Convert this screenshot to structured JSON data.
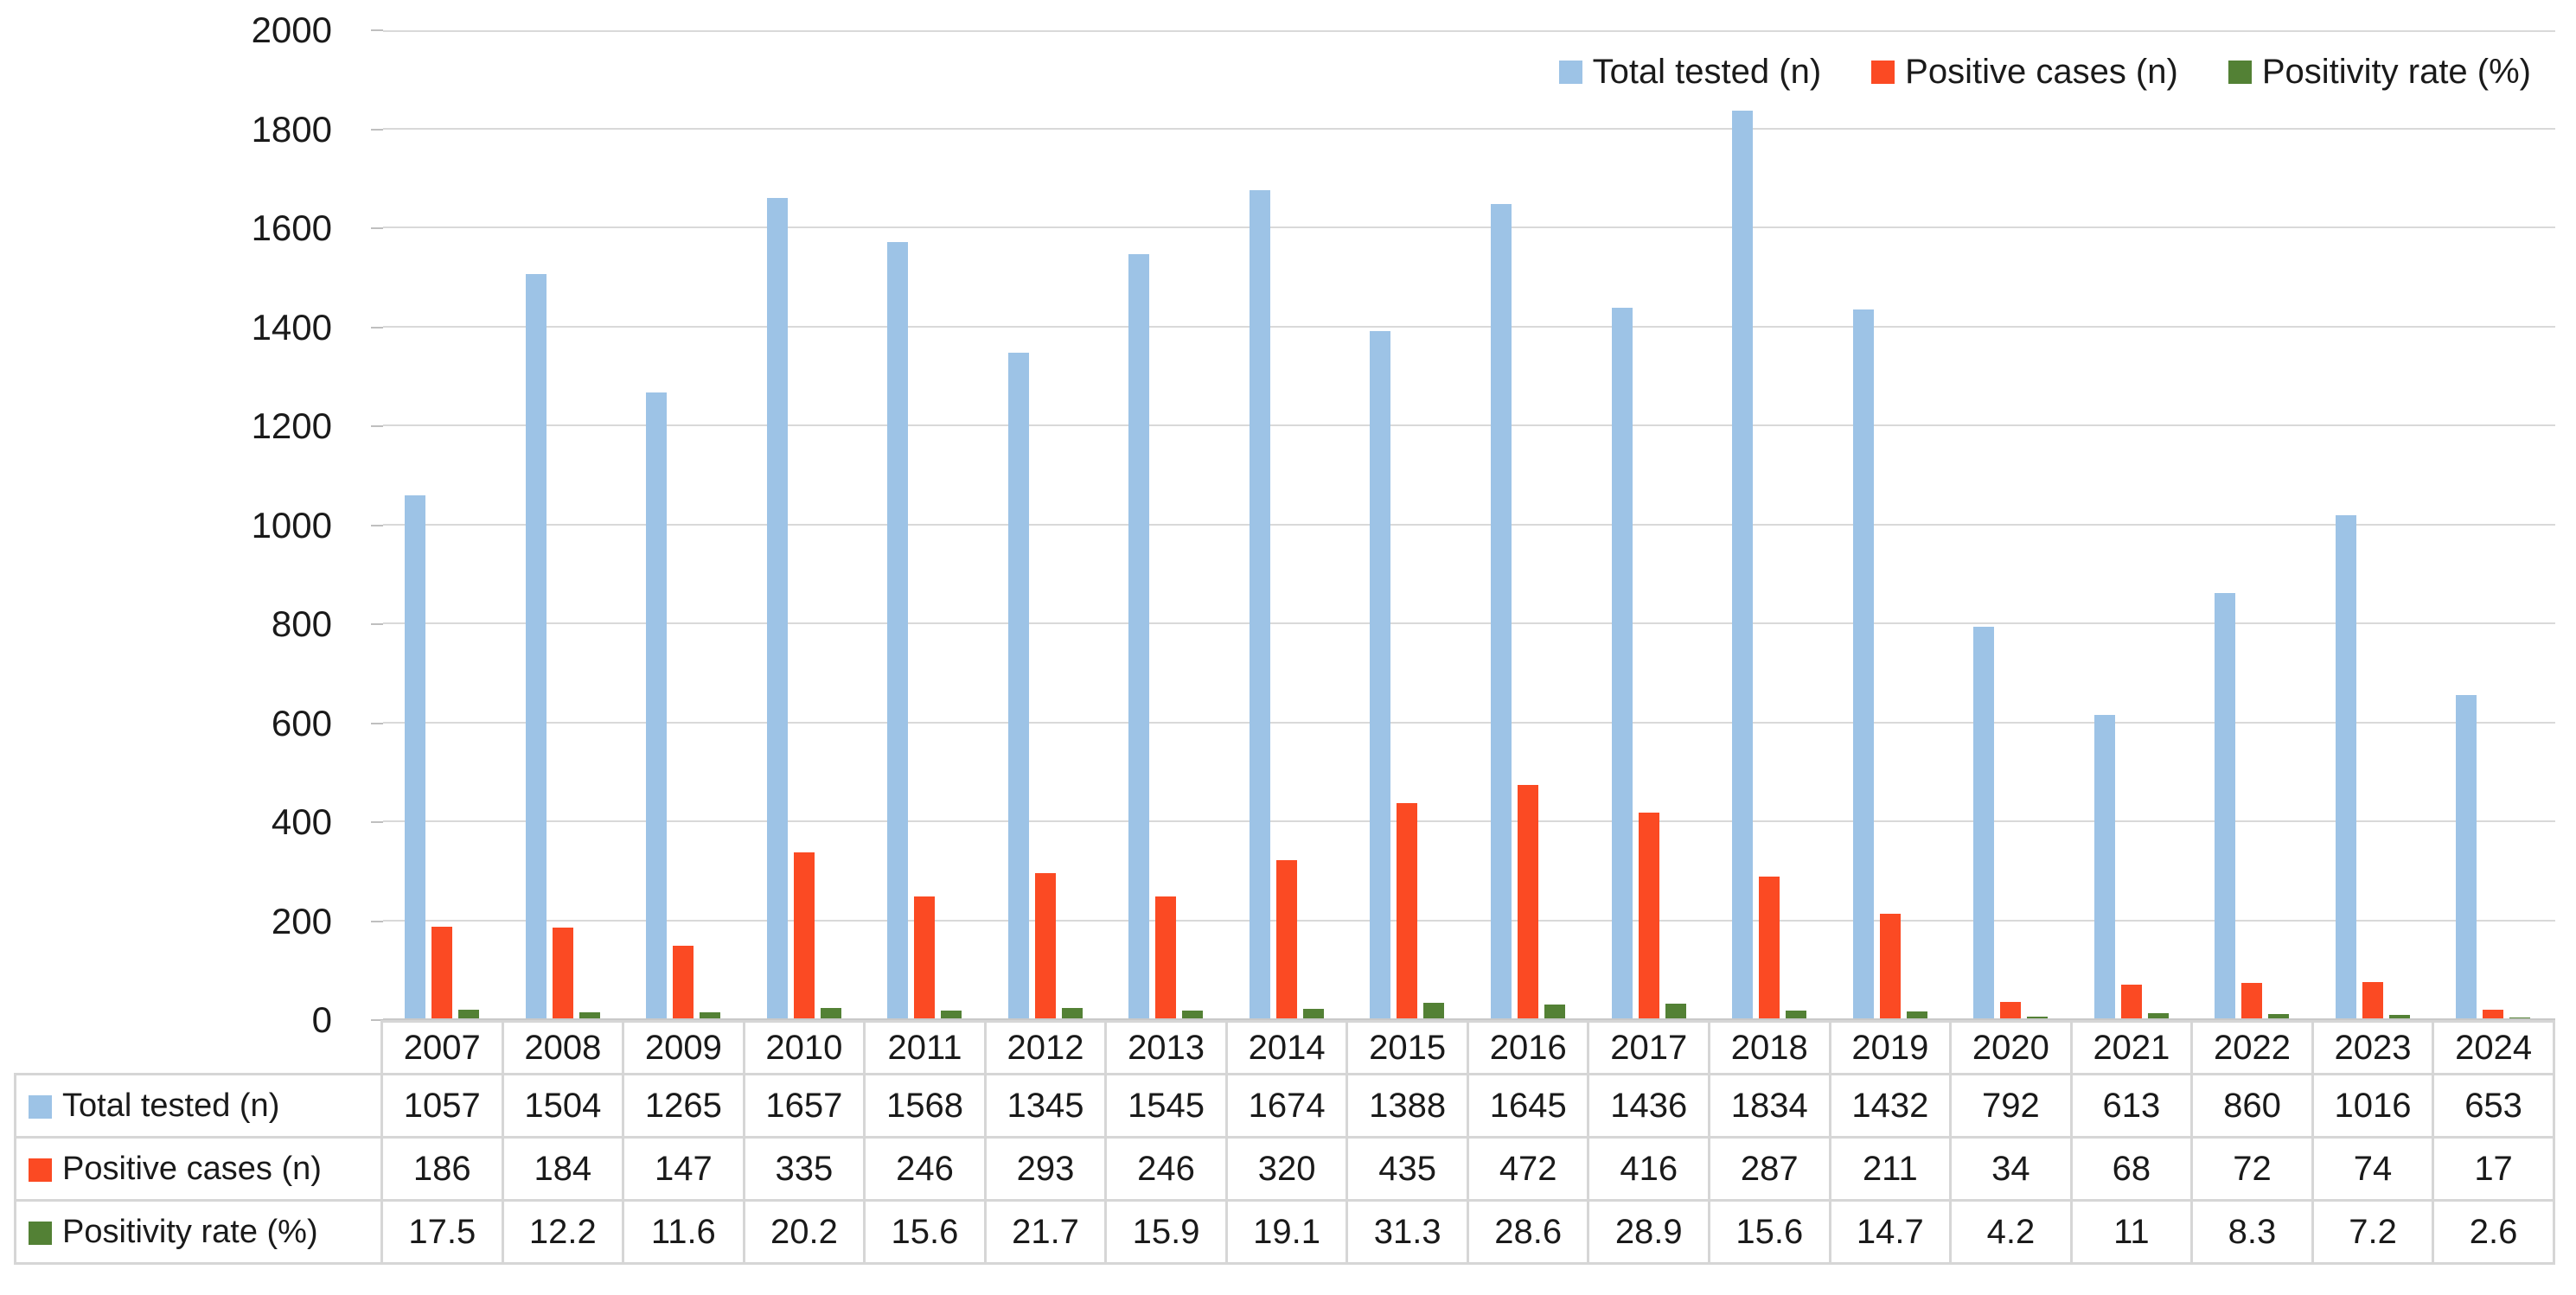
{
  "chart_data": {
    "type": "bar",
    "title": "",
    "categories": [
      "2007",
      "2008",
      "2009",
      "2010",
      "2011",
      "2012",
      "2013",
      "2014",
      "2015",
      "2016",
      "2017",
      "2018",
      "2019",
      "2020",
      "2021",
      "2022",
      "2023",
      "2024"
    ],
    "series": [
      {
        "name": "Total tested (n)",
        "color": "#9DC3E6",
        "values": [
          1057,
          1504,
          1265,
          1657,
          1568,
          1345,
          1545,
          1674,
          1388,
          1645,
          1436,
          1834,
          1432,
          792,
          613,
          860,
          1016,
          653
        ]
      },
      {
        "name": "Positive cases (n)",
        "color": "#FB4A23",
        "values": [
          186,
          184,
          147,
          335,
          246,
          293,
          246,
          320,
          435,
          472,
          416,
          287,
          211,
          34,
          68,
          72,
          74,
          17
        ]
      },
      {
        "name": "Positivity rate (%)",
        "color": "#538135",
        "values": [
          17.5,
          12.2,
          11.6,
          20.2,
          15.6,
          21.7,
          15.9,
          19.1,
          31.3,
          28.6,
          28.9,
          15.6,
          14.7,
          4.2,
          11,
          8.3,
          7.2,
          2.6
        ]
      }
    ],
    "xlabel": "",
    "ylabel": "",
    "ylim": [
      0,
      2000
    ],
    "y_ticks": [
      0,
      200,
      400,
      600,
      800,
      1000,
      1200,
      1400,
      1600,
      1800,
      2000
    ],
    "grid": true,
    "legend_position": "top-right",
    "data_table_shown": true
  },
  "legend": {
    "items": [
      {
        "label": "Total tested (n)",
        "color": "#9DC3E6"
      },
      {
        "label": "Positive cases (n)",
        "color": "#FB4A23"
      },
      {
        "label": "Positivity rate (%)",
        "color": "#538135"
      }
    ]
  },
  "table": {
    "column_headers": [
      "2007",
      "2008",
      "2009",
      "2010",
      "2011",
      "2012",
      "2013",
      "2014",
      "2015",
      "2016",
      "2017",
      "2018",
      "2019",
      "2020",
      "2021",
      "2022",
      "2023",
      "2024"
    ],
    "rows": [
      {
        "label": "Total tested (n)",
        "color": "#9DC3E6",
        "values": [
          "1057",
          "1504",
          "1265",
          "1657",
          "1568",
          "1345",
          "1545",
          "1674",
          "1388",
          "1645",
          "1436",
          "1834",
          "1432",
          "792",
          "613",
          "860",
          "1016",
          "653"
        ]
      },
      {
        "label": "Positive cases (n)",
        "color": "#FB4A23",
        "values": [
          "186",
          "184",
          "147",
          "335",
          "246",
          "293",
          "246",
          "320",
          "435",
          "472",
          "416",
          "287",
          "211",
          "34",
          "68",
          "72",
          "74",
          "17"
        ]
      },
      {
        "label": "Positivity rate (%)",
        "color": "#538135",
        "values": [
          "17.5",
          "12.2",
          "11.6",
          "20.2",
          "15.6",
          "21.7",
          "15.9",
          "19.1",
          "31.3",
          "28.6",
          "28.9",
          "15.6",
          "14.7",
          "4.2",
          "11",
          "8.3",
          "7.2",
          "2.6"
        ]
      }
    ]
  }
}
